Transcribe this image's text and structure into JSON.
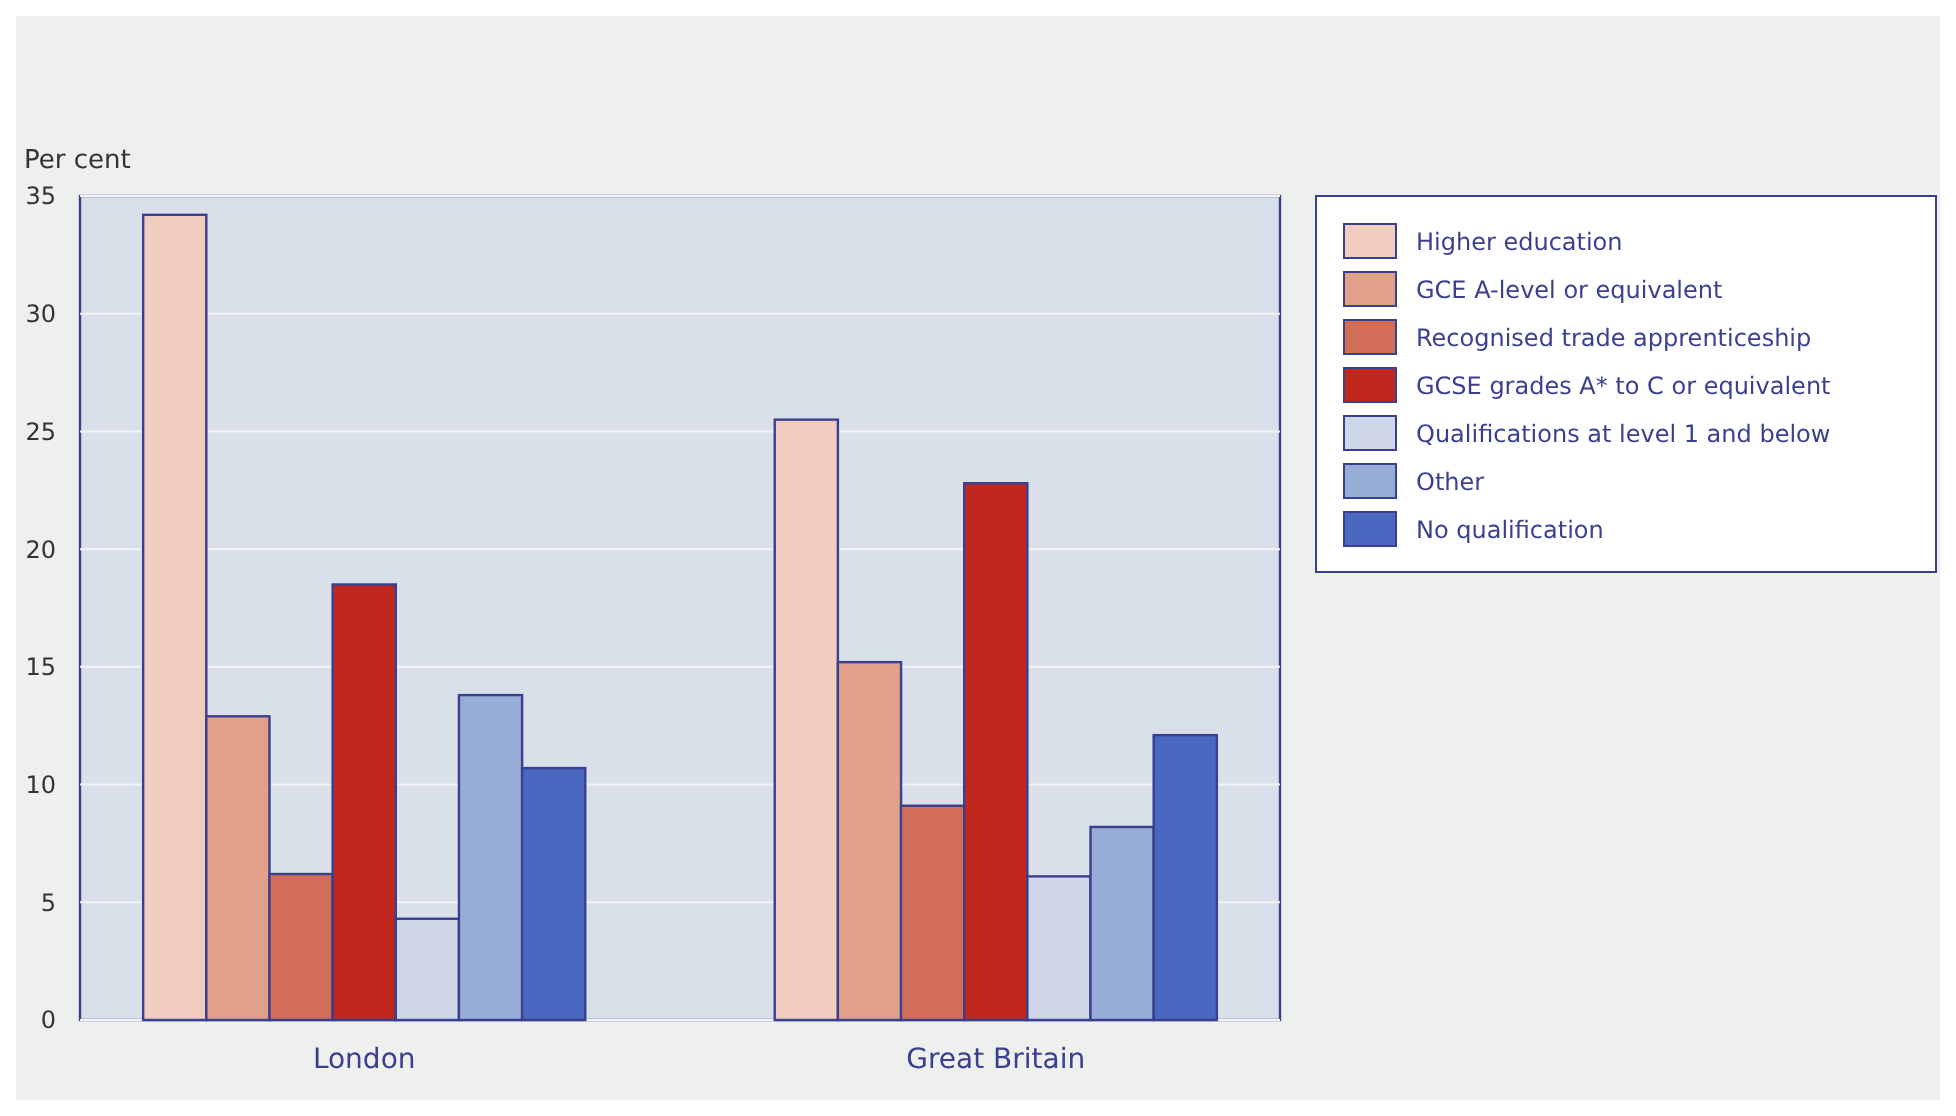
{
  "chart_data": {
    "type": "bar",
    "ylabel": "Per cent",
    "categories": [
      "London",
      "Great Britain"
    ],
    "series": [
      {
        "name": "Higher education",
        "color": "#f0cdbf",
        "values": [
          34.2,
          25.5
        ]
      },
      {
        "name": "GCE A-level or equivalent",
        "color": "#e0a08a",
        "values": [
          12.9,
          15.2
        ]
      },
      {
        "name": "Recognised trade apprenticeship",
        "color": "#d26e58",
        "values": [
          6.2,
          9.1
        ]
      },
      {
        "name": "GCSE grades A* to C or equivalent",
        "color": "#c0281e",
        "values": [
          18.5,
          22.8
        ]
      },
      {
        "name": "Qualifications at level 1 and below",
        "color": "#cdd7e7",
        "values": [
          4.3,
          6.1
        ]
      },
      {
        "name": "Other",
        "color": "#98acd8",
        "values": [
          13.8,
          8.2
        ]
      },
      {
        "name": "No qualification",
        "color": "#4a68c0",
        "values": [
          10.7,
          12.1
        ]
      }
    ],
    "ylim": [
      0,
      35
    ],
    "yticks": [
      0,
      5,
      10,
      15,
      20,
      25,
      30,
      35
    ],
    "grid": "y",
    "legend": "right"
  }
}
